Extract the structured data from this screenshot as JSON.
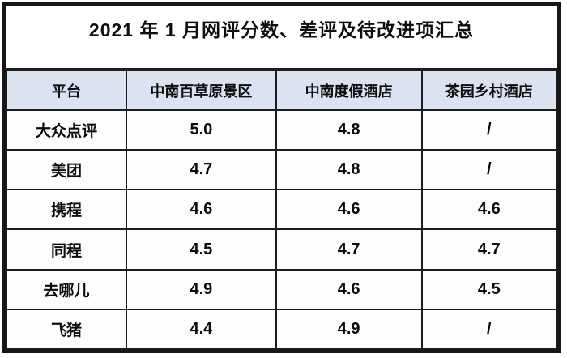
{
  "page_title": "2021 年 1 月网评分数、差评及待改进项汇总",
  "colors": {
    "header_bg": "#dbe2f0",
    "border": "#1d1d1d",
    "text": "#0c0c0c",
    "cell_bg": "#fdfdfe"
  },
  "chart_data": {
    "type": "table",
    "title": "2021 年 1 月网评分数、差评及待改进项汇总",
    "columns": [
      "平台",
      "中南百草原景区",
      "中南度假酒店",
      "茶园乡村酒店"
    ],
    "rows": [
      [
        "大众点评",
        "5.0",
        "4.8",
        "/"
      ],
      [
        "美团",
        "4.7",
        "4.8",
        "/"
      ],
      [
        "携程",
        "4.6",
        "4.6",
        "4.6"
      ],
      [
        "同程",
        "4.5",
        "4.7",
        "4.7"
      ],
      [
        "去哪儿",
        "4.9",
        "4.6",
        "4.5"
      ],
      [
        "飞猪",
        "4.4",
        "4.9",
        "/"
      ]
    ]
  }
}
